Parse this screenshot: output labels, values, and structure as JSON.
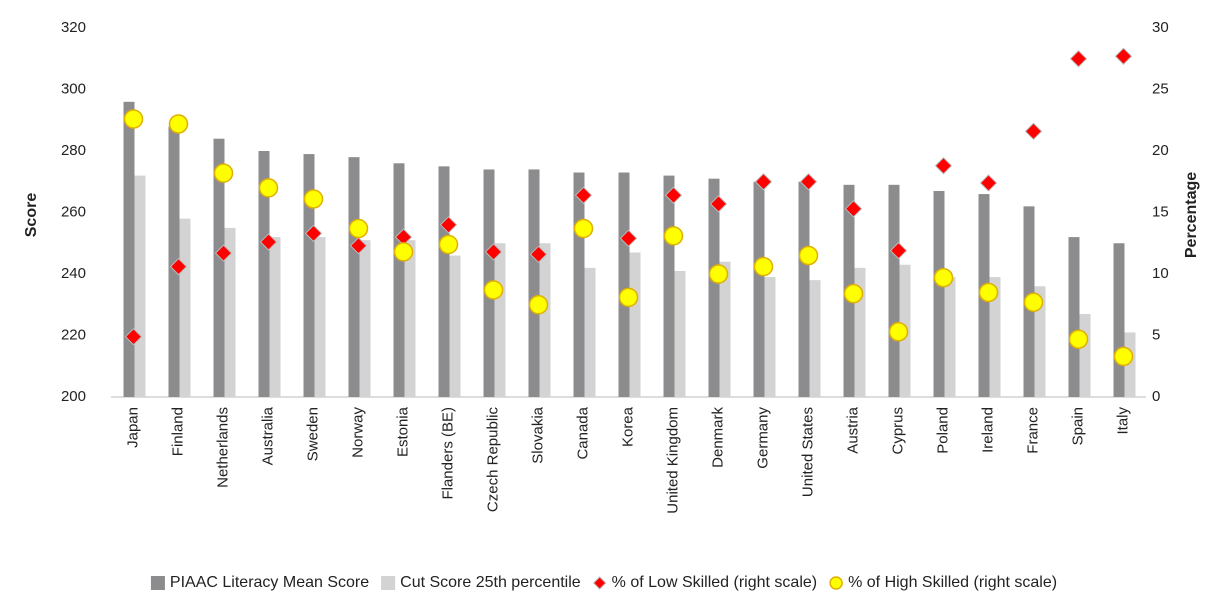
{
  "chart_data": {
    "type": "bar",
    "y_label": "Score",
    "y2_label": "Percentage",
    "categories": [
      "Japan",
      "Finland",
      "Netherlands",
      "Australia",
      "Sweden",
      "Norway",
      "Estonia",
      "Flanders (BE)",
      "Czech Republic",
      "Slovakia",
      "Canada",
      "Korea",
      "United Kingdom",
      "Denmark",
      "Germany",
      "United States",
      "Austria",
      "Cyprus",
      "Poland",
      "Ireland",
      "France",
      "Spain",
      "Italy"
    ],
    "ylim": [
      200,
      320
    ],
    "yticks": [
      200,
      220,
      240,
      260,
      280,
      300,
      320
    ],
    "y2lim": [
      0,
      30
    ],
    "y2ticks": [
      0,
      5,
      10,
      15,
      20,
      25,
      30
    ],
    "grid": false,
    "legend": "bottom",
    "series": [
      {
        "name": "PIAAC Literacy Mean Score",
        "color": "#8c8c8e",
        "marker": "bar",
        "values": [
          296,
          288,
          284,
          280,
          279,
          278,
          276,
          275,
          274,
          274,
          273,
          273,
          272,
          271,
          270,
          270,
          269,
          269,
          267,
          266,
          262,
          252,
          250
        ]
      },
      {
        "name": "Cut Score 25th percentile",
        "color": "#d3d3d3",
        "marker": "bar",
        "values": [
          272,
          258,
          255,
          252,
          252,
          251,
          251,
          246,
          250,
          250,
          242,
          247,
          241,
          244,
          239,
          238,
          242,
          243,
          239,
          239,
          236,
          227,
          221
        ]
      },
      {
        "name": "% of Low Skilled (right scale)",
        "color": "#ff0000",
        "marker": "diamond",
        "axis": "y2",
        "values": [
          4.9,
          10.6,
          11.7,
          12.6,
          13.3,
          12.3,
          13.0,
          14.0,
          11.8,
          11.6,
          16.4,
          12.9,
          16.4,
          15.7,
          17.5,
          17.5,
          15.3,
          11.9,
          18.8,
          17.4,
          21.6,
          27.5,
          27.7
        ]
      },
      {
        "name": "% of High Skilled (right scale)",
        "color": "#ffff00",
        "marker": "circle",
        "axis": "y2",
        "values": [
          22.6,
          22.2,
          18.2,
          17.0,
          16.1,
          13.7,
          11.8,
          12.4,
          8.7,
          7.5,
          13.7,
          8.1,
          13.1,
          10.0,
          10.6,
          11.5,
          8.4,
          5.3,
          9.7,
          8.5,
          7.7,
          4.7,
          3.3
        ]
      }
    ]
  }
}
